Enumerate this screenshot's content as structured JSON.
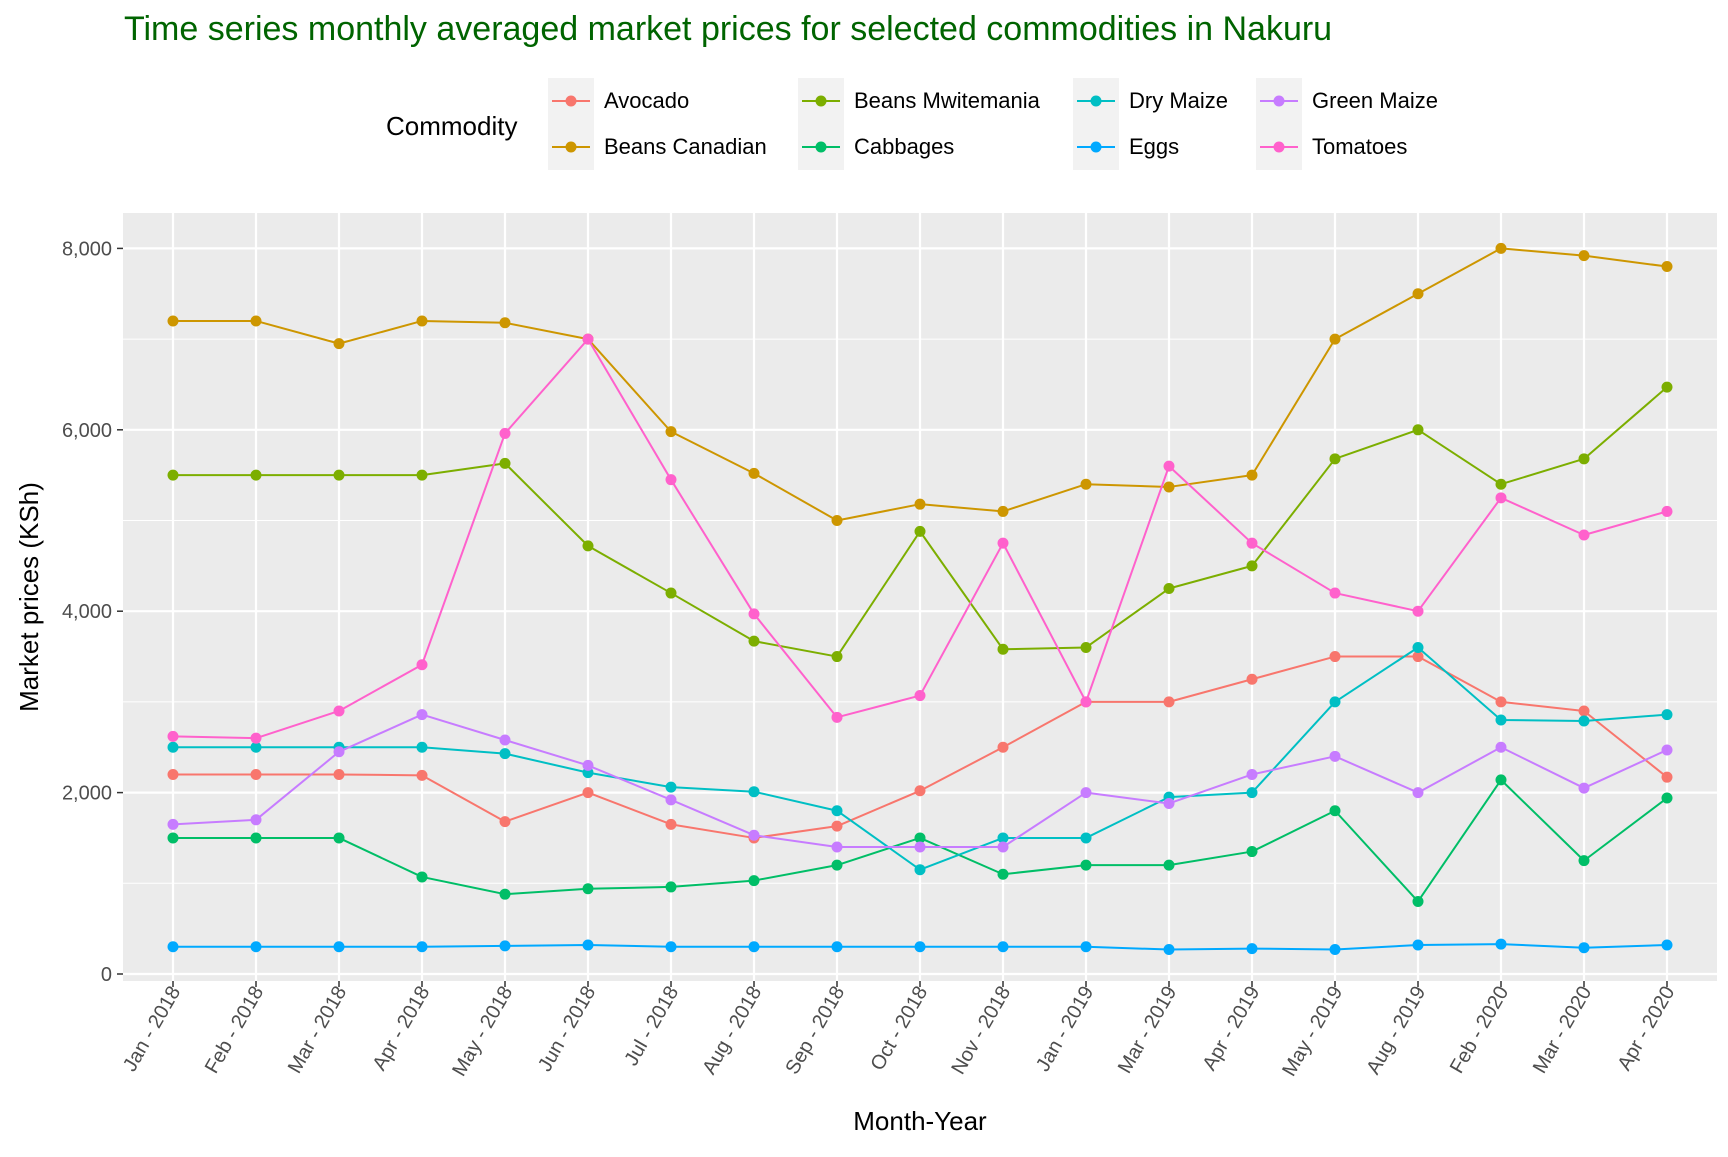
{
  "chart_data": {
    "type": "line",
    "title": "Time series monthly averaged market prices for selected commodities in Nakuru",
    "xlabel": "Month-Year",
    "ylabel": "Market prices (KSh)",
    "ylim": [
      0,
      8400
    ],
    "y_ticks": [
      0,
      2000,
      4000,
      6000,
      8000
    ],
    "y_tick_labels": [
      "0",
      "2,000",
      "4,000",
      "6,000",
      "8,000"
    ],
    "grid": true,
    "legend": {
      "title": "Commodity",
      "position": "top"
    },
    "categories": [
      "Jan - 2018",
      "Feb - 2018",
      "Mar - 2018",
      "Apr - 2018",
      "May - 2018",
      "Jun - 2018",
      "Jul - 2018",
      "Aug - 2018",
      "Sep - 2018",
      "Oct - 2018",
      "Nov - 2018",
      "Jan - 2019",
      "Mar - 2019",
      "Apr - 2019",
      "May - 2019",
      "Aug - 2019",
      "Feb - 2020",
      "Mar - 2020",
      "Apr - 2020"
    ],
    "series": [
      {
        "name": "Avocado",
        "color": "#F8766D",
        "values": [
          2200,
          2200,
          2200,
          2190,
          1680,
          2000,
          1650,
          1500,
          1630,
          2020,
          2500,
          3000,
          3000,
          3250,
          3500,
          3500,
          3000,
          2900,
          2170
        ]
      },
      {
        "name": "Beans Canadian",
        "color": "#CD9600",
        "values": [
          7200,
          7200,
          6950,
          7200,
          7180,
          7000,
          5980,
          5520,
          5000,
          5180,
          5100,
          5400,
          5370,
          5500,
          7000,
          7500,
          8000,
          7920,
          7800
        ]
      },
      {
        "name": "Beans Mwitemania",
        "color": "#7CAE00",
        "values": [
          5500,
          5500,
          5500,
          5500,
          5630,
          4720,
          4200,
          3670,
          3500,
          4880,
          3580,
          3600,
          4250,
          4500,
          5680,
          6000,
          5400,
          5680,
          6470
        ]
      },
      {
        "name": "Cabbages",
        "color": "#00BE67",
        "values": [
          1500,
          1500,
          1500,
          1070,
          880,
          940,
          960,
          1030,
          1200,
          1500,
          1100,
          1200,
          1200,
          1350,
          1800,
          800,
          2140,
          1250,
          1940
        ]
      },
      {
        "name": "Dry Maize",
        "color": "#00BFC4",
        "values": [
          2500,
          2500,
          2500,
          2500,
          2430,
          2220,
          2060,
          2010,
          1800,
          1150,
          1500,
          1500,
          1950,
          2000,
          3000,
          3600,
          2800,
          2790,
          2860
        ]
      },
      {
        "name": "Eggs",
        "color": "#00A9FF",
        "values": [
          300,
          300,
          300,
          300,
          310,
          320,
          300,
          300,
          300,
          300,
          300,
          300,
          270,
          280,
          270,
          320,
          330,
          290,
          320
        ]
      },
      {
        "name": "Green Maize",
        "color": "#C77CFF",
        "values": [
          1650,
          1700,
          2450,
          2860,
          2580,
          2300,
          1920,
          1530,
          1400,
          1400,
          1400,
          2000,
          1880,
          2200,
          2400,
          2000,
          2500,
          2050,
          2470
        ]
      },
      {
        "name": "Tomatoes",
        "color": "#FF61CC",
        "values": [
          2620,
          2600,
          2900,
          3410,
          5960,
          7000,
          5450,
          3970,
          2830,
          3070,
          4750,
          3000,
          5600,
          4750,
          4200,
          4000,
          5250,
          4840,
          5100
        ]
      }
    ]
  }
}
